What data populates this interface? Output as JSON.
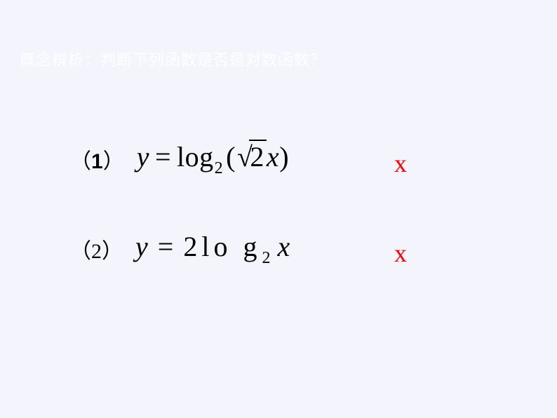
{
  "heading": "概念辨析：判断下列函数是否是对数函数？",
  "items": [
    {
      "num_open": "（",
      "num_digit": "1",
      "num_close": "）",
      "var_y": "y",
      "eq": "=",
      "log_text": "log",
      "log_base": "2",
      "paren_open": "(",
      "sqrt_body": "2",
      "var_x": "x",
      "paren_close": ")",
      "mark": "x"
    },
    {
      "num_open": "（",
      "num_digit": "2",
      "num_close": "）",
      "var_y": "y",
      "eq": "=",
      "coef": "2",
      "log_text": "lo g",
      "log_base": "2",
      "var_x": "x",
      "mark": "x"
    }
  ],
  "colors": {
    "background": "#f4f4fd",
    "heading": "#fefeff",
    "formula": "#000000",
    "mark": "#ff0000"
  }
}
